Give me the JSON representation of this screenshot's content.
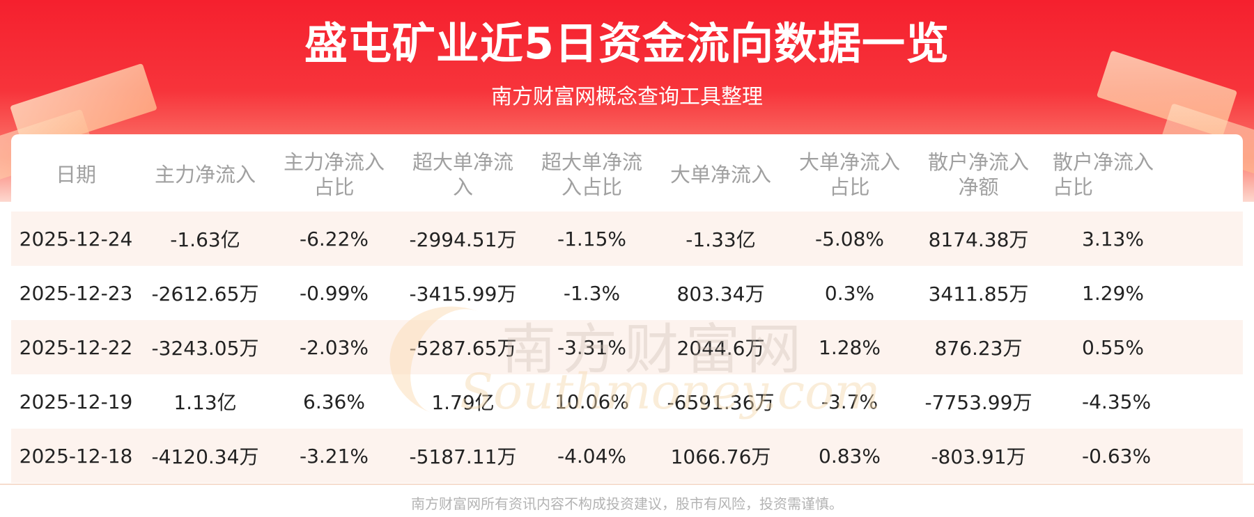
{
  "header": {
    "title": "盛屯矿业近5日资金流向数据一览",
    "subtitle": "南方财富网概念查询工具整理"
  },
  "table": {
    "columns": [
      "日期",
      "主力净流入",
      "主力净流入\n占比",
      "超大单净流\n入",
      "超大单净流\n入占比",
      "大单净流入",
      "大单净流入\n占比",
      "散户净流入\n净额",
      "散户净流入\n占比"
    ],
    "rows": [
      [
        "2025-12-24",
        "-1.63亿",
        "-6.22%",
        "-2994.51万",
        "-1.15%",
        "-1.33亿",
        "-5.08%",
        "8174.38万",
        "3.13%"
      ],
      [
        "2025-12-23",
        "-2612.65万",
        "-0.99%",
        "-3415.99万",
        "-1.3%",
        "803.34万",
        "0.3%",
        "3411.85万",
        "1.29%"
      ],
      [
        "2025-12-22",
        "-3243.05万",
        "-2.03%",
        "-5287.65万",
        "-3.31%",
        "2044.6万",
        "1.28%",
        "876.23万",
        "0.55%"
      ],
      [
        "2025-12-19",
        "1.13亿",
        "6.36%",
        "1.79亿",
        "10.06%",
        "-6591.36万",
        "-3.7%",
        "-7753.99万",
        "-4.35%"
      ],
      [
        "2025-12-18",
        "-4120.34万",
        "-3.21%",
        "-5187.11万",
        "-4.04%",
        "1066.76万",
        "0.83%",
        "-803.91万",
        "-0.63%"
      ]
    ]
  },
  "watermark": {
    "cn": "南方财富网",
    "en": "Southmoney.com"
  },
  "footer": {
    "disclaimer": "南方财富网所有资讯内容不构成投资建议，股市有风险，投资需谨慎。"
  },
  "colors": {
    "banner_red": "#f5202e",
    "header_text": "#a0a0a0",
    "stripe": "#fdf3ee",
    "body_text": "#222222"
  }
}
